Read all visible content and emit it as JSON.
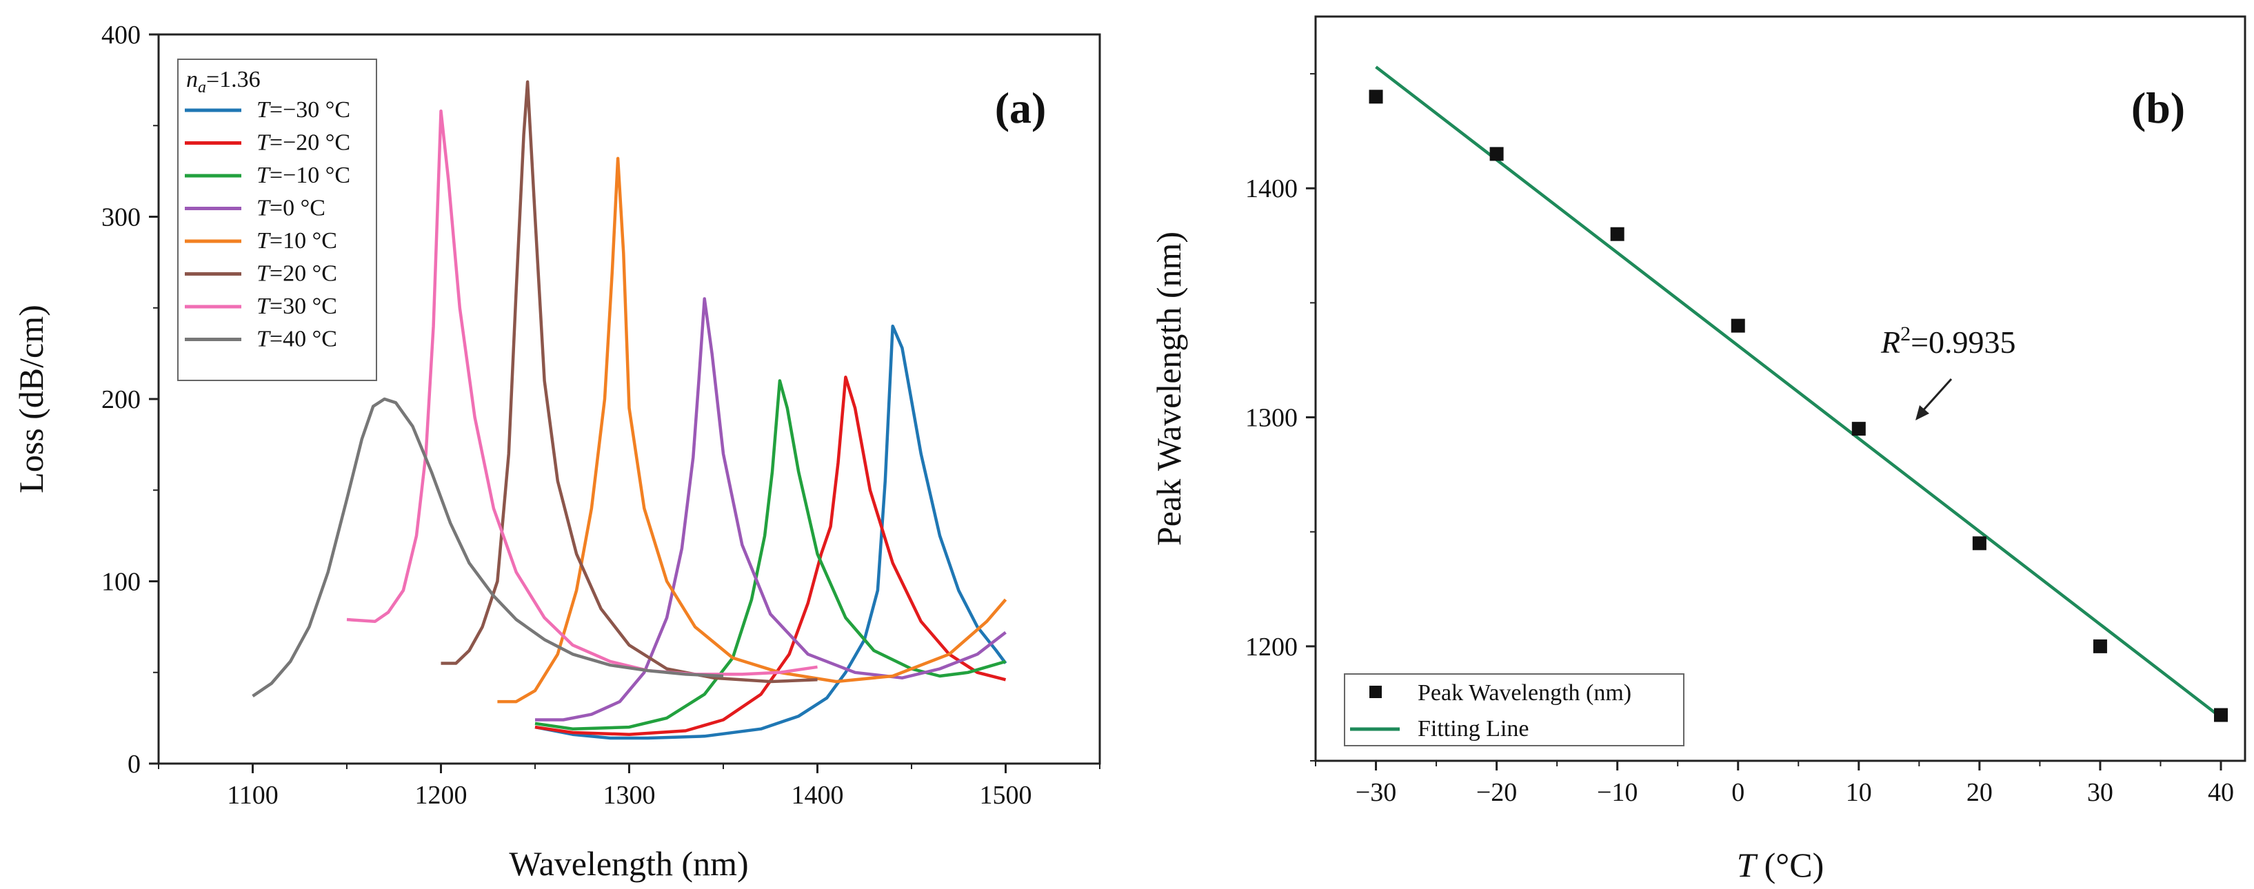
{
  "chart_data": [
    {
      "panel": "(a)",
      "type": "line",
      "xlabel": "Wavelength (nm)",
      "ylabel": "Loss (dB/cm)",
      "xlim": [
        1050,
        1550
      ],
      "ylim": [
        0,
        400
      ],
      "xticks": [
        1100,
        1200,
        1300,
        1400,
        1500
      ],
      "yticks": [
        0,
        100,
        200,
        300,
        400
      ],
      "legend_title": {
        "var": "n",
        "sub": "a",
        "value": "=1.36"
      },
      "legend_position": "top-left",
      "series": [
        {
          "name": "T=−30 °C",
          "var": "T",
          "label": "=−30 °C",
          "color": "#1f77b4",
          "points": [
            [
              1250,
              20
            ],
            [
              1270,
              16
            ],
            [
              1290,
              14
            ],
            [
              1310,
              14
            ],
            [
              1340,
              15
            ],
            [
              1370,
              19
            ],
            [
              1390,
              26
            ],
            [
              1405,
              36
            ],
            [
              1415,
              50
            ],
            [
              1425,
              68
            ],
            [
              1432,
              95
            ],
            [
              1436,
              155
            ],
            [
              1440,
              240
            ],
            [
              1445,
              228
            ],
            [
              1455,
              170
            ],
            [
              1465,
              125
            ],
            [
              1475,
              95
            ],
            [
              1485,
              75
            ],
            [
              1495,
              62
            ],
            [
              1500,
              55
            ]
          ]
        },
        {
          "name": "T=−20 °C",
          "var": "T",
          "label": "=−20 °C",
          "color": "#e31a1c",
          "points": [
            [
              1250,
              20
            ],
            [
              1270,
              17
            ],
            [
              1300,
              16
            ],
            [
              1330,
              18
            ],
            [
              1350,
              24
            ],
            [
              1370,
              38
            ],
            [
              1385,
              60
            ],
            [
              1395,
              88
            ],
            [
              1402,
              115
            ],
            [
              1407,
              130
            ],
            [
              1411,
              165
            ],
            [
              1415,
              212
            ],
            [
              1420,
              195
            ],
            [
              1428,
              150
            ],
            [
              1440,
              110
            ],
            [
              1455,
              78
            ],
            [
              1470,
              60
            ],
            [
              1485,
              50
            ],
            [
              1500,
              46
            ]
          ]
        },
        {
          "name": "T=−10 °C",
          "var": "T",
          "label": "=−10 °C",
          "color": "#22a13e",
          "points": [
            [
              1250,
              22
            ],
            [
              1270,
              19
            ],
            [
              1300,
              20
            ],
            [
              1320,
              25
            ],
            [
              1340,
              38
            ],
            [
              1355,
              58
            ],
            [
              1365,
              90
            ],
            [
              1372,
              125
            ],
            [
              1376,
              160
            ],
            [
              1380,
              210
            ],
            [
              1384,
              195
            ],
            [
              1390,
              160
            ],
            [
              1400,
              115
            ],
            [
              1415,
              80
            ],
            [
              1430,
              62
            ],
            [
              1450,
              52
            ],
            [
              1465,
              48
            ],
            [
              1480,
              50
            ],
            [
              1500,
              56
            ]
          ]
        },
        {
          "name": "T=0 °C",
          "var": "T",
          "label": "=0 °C",
          "color": "#9b59b6",
          "points": [
            [
              1250,
              24
            ],
            [
              1265,
              24
            ],
            [
              1280,
              27
            ],
            [
              1295,
              34
            ],
            [
              1308,
              50
            ],
            [
              1320,
              80
            ],
            [
              1328,
              118
            ],
            [
              1334,
              168
            ],
            [
              1337,
              210
            ],
            [
              1340,
              255
            ],
            [
              1344,
              225
            ],
            [
              1350,
              170
            ],
            [
              1360,
              120
            ],
            [
              1375,
              82
            ],
            [
              1395,
              60
            ],
            [
              1420,
              50
            ],
            [
              1445,
              47
            ],
            [
              1465,
              52
            ],
            [
              1485,
              60
            ],
            [
              1500,
              72
            ]
          ]
        },
        {
          "name": "T=10 °C",
          "var": "T",
          "label": "=10 °C",
          "color": "#f28022",
          "points": [
            [
              1230,
              34
            ],
            [
              1240,
              34
            ],
            [
              1250,
              40
            ],
            [
              1262,
              60
            ],
            [
              1272,
              95
            ],
            [
              1280,
              140
            ],
            [
              1287,
              200
            ],
            [
              1291,
              270
            ],
            [
              1294,
              332
            ],
            [
              1297,
              280
            ],
            [
              1300,
              195
            ],
            [
              1308,
              140
            ],
            [
              1320,
              100
            ],
            [
              1335,
              75
            ],
            [
              1355,
              58
            ],
            [
              1380,
              50
            ],
            [
              1410,
              45
            ],
            [
              1440,
              48
            ],
            [
              1470,
              60
            ],
            [
              1490,
              78
            ],
            [
              1500,
              90
            ]
          ]
        },
        {
          "name": "T=20 °C",
          "var": "T",
          "label": "=20 °C",
          "color": "#8c564b",
          "points": [
            [
              1200,
              55
            ],
            [
              1208,
              55
            ],
            [
              1215,
              62
            ],
            [
              1222,
              75
            ],
            [
              1230,
              100
            ],
            [
              1236,
              170
            ],
            [
              1240,
              260
            ],
            [
              1244,
              345
            ],
            [
              1246,
              374
            ],
            [
              1250,
              300
            ],
            [
              1255,
              210
            ],
            [
              1262,
              155
            ],
            [
              1272,
              115
            ],
            [
              1285,
              85
            ],
            [
              1300,
              65
            ],
            [
              1320,
              52
            ],
            [
              1345,
              47
            ],
            [
              1375,
              45
            ],
            [
              1400,
              46
            ]
          ]
        },
        {
          "name": "T=30 °C",
          "var": "T",
          "label": "=30 °C",
          "color": "#f06fb4",
          "points": [
            [
              1150,
              79
            ],
            [
              1165,
              78
            ],
            [
              1172,
              83
            ],
            [
              1180,
              95
            ],
            [
              1187,
              125
            ],
            [
              1192,
              170
            ],
            [
              1196,
              240
            ],
            [
              1200,
              358
            ],
            [
              1204,
              320
            ],
            [
              1210,
              250
            ],
            [
              1218,
              190
            ],
            [
              1228,
              140
            ],
            [
              1240,
              105
            ],
            [
              1255,
              80
            ],
            [
              1270,
              65
            ],
            [
              1290,
              56
            ],
            [
              1310,
              51
            ],
            [
              1335,
              49
            ],
            [
              1360,
              49
            ],
            [
              1380,
              50
            ],
            [
              1400,
              53
            ]
          ]
        },
        {
          "name": "T=40 °C",
          "var": "T",
          "label": "=40 °C",
          "color": "#777777",
          "points": [
            [
              1100,
              37
            ],
            [
              1110,
              44
            ],
            [
              1120,
              56
            ],
            [
              1130,
              75
            ],
            [
              1140,
              105
            ],
            [
              1150,
              145
            ],
            [
              1158,
              178
            ],
            [
              1164,
              196
            ],
            [
              1170,
              200
            ],
            [
              1176,
              198
            ],
            [
              1185,
              185
            ],
            [
              1195,
              160
            ],
            [
              1205,
              132
            ],
            [
              1215,
              110
            ],
            [
              1228,
              92
            ],
            [
              1240,
              79
            ],
            [
              1255,
              68
            ],
            [
              1270,
              60
            ],
            [
              1290,
              54
            ],
            [
              1310,
              51
            ],
            [
              1330,
              49
            ],
            [
              1350,
              48
            ]
          ]
        }
      ],
      "panel_label": "(a)"
    },
    {
      "panel": "(b)",
      "type": "scatter",
      "xlabel": "(°C)",
      "xlabel_var": "T",
      "ylabel": "Peak Wavelength (nm)",
      "xlim": [
        -35,
        42
      ],
      "ylim": [
        1150,
        1475
      ],
      "xticks": [
        -30,
        -20,
        -10,
        0,
        10,
        20,
        30,
        40
      ],
      "xtick_labels": [
        "−30",
        "−20",
        "−10",
        "0",
        "10",
        "20",
        "30",
        "40"
      ],
      "yticks": [
        1200,
        1300,
        1400
      ],
      "x": [
        -30,
        -20,
        -10,
        0,
        10,
        20,
        30,
        40
      ],
      "y": [
        1440,
        1415,
        1380,
        1340,
        1295,
        1245,
        1200,
        1170
      ],
      "fit_line": {
        "x": [
          -30,
          40
        ],
        "y": [
          1453,
          1169
        ],
        "color": "#1e8a5a"
      },
      "legend": [
        "Peak Wavelength (nm)",
        "Fitting Line"
      ],
      "legend_position": "bottom-left",
      "annotation": {
        "var": "R",
        "sup": "2",
        "value": "=0.9935",
        "points_to": [
          17,
          1300
        ]
      },
      "panel_label": "(b)"
    }
  ]
}
